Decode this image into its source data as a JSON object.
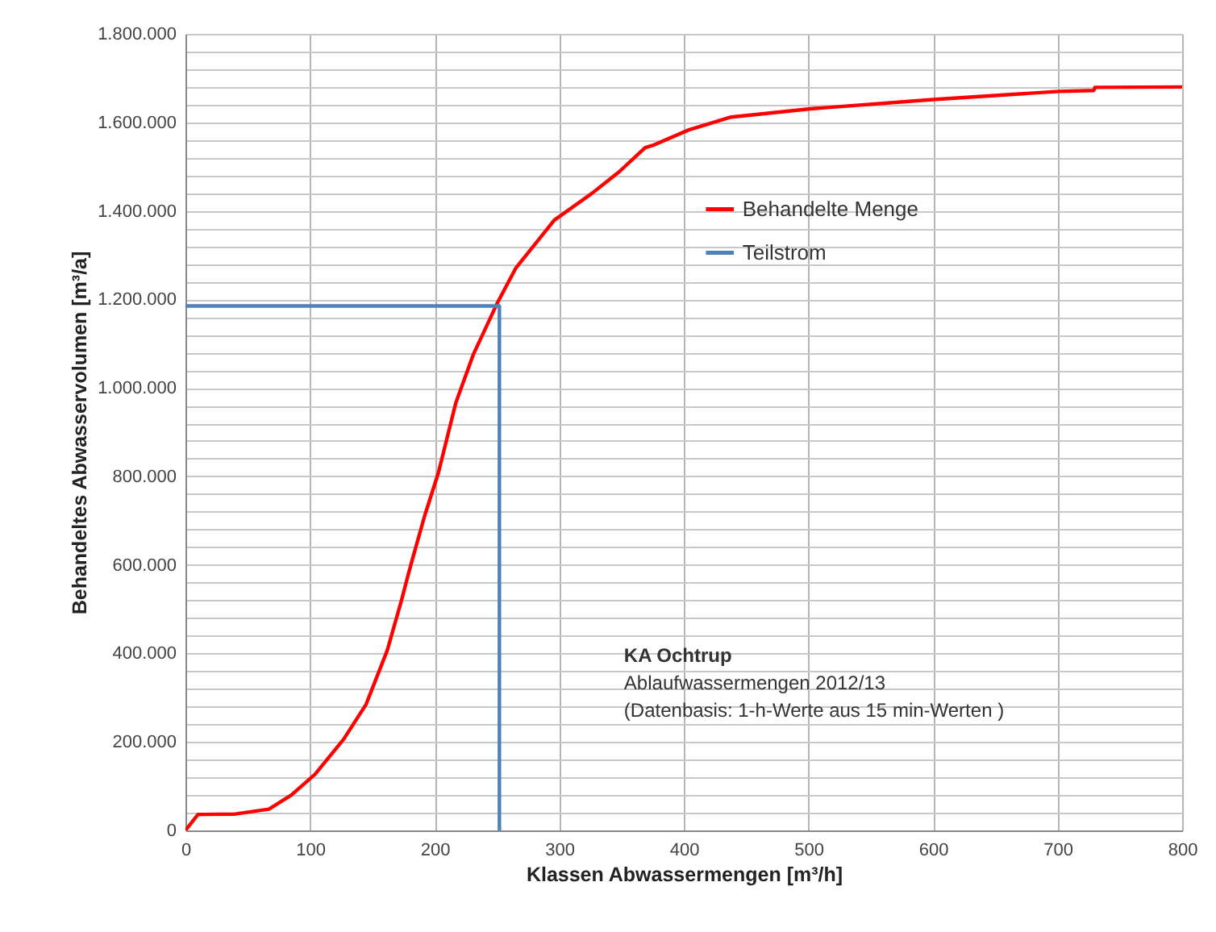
{
  "chart_data": {
    "type": "line",
    "xlabel": "Klassen Abwassermengen [m³/h]",
    "ylabel": "Behandeltes Abwasservolumen [m³/a]",
    "xlim": [
      0,
      800
    ],
    "xticks": [
      0,
      100,
      200,
      300,
      400,
      500,
      600,
      700,
      800
    ],
    "ylim": [
      0,
      1800000
    ],
    "yticks": [
      0,
      {
        "value": 40000,
        "label": null
      },
      {
        "value": 80000,
        "label": null
      },
      {
        "value": 120000,
        "label": null
      },
      {
        "value": 160000,
        "label": null
      },
      {
        "value": 200000,
        "label": "200.000"
      },
      {
        "value": 240000,
        "label": null
      },
      {
        "value": 280000,
        "label": null
      },
      {
        "value": 320000,
        "label": null
      },
      {
        "value": 360000,
        "label": null
      },
      {
        "value": 400000,
        "label": "400.000"
      },
      {
        "value": 440000,
        "label": null
      },
      {
        "value": 480000,
        "label": null
      },
      {
        "value": 520000,
        "label": null
      },
      {
        "value": 560000,
        "label": null
      },
      {
        "value": 600000,
        "label": "600.000"
      },
      {
        "value": 640000,
        "label": null
      },
      {
        "value": 680000,
        "label": null
      },
      {
        "value": 720000,
        "label": null
      },
      {
        "value": 760000,
        "label": null
      },
      {
        "value": 800000,
        "label": "800.000"
      },
      {
        "value": 840000,
        "label": null
      },
      {
        "value": 880000,
        "label": null
      },
      {
        "value": 920000,
        "label": null
      },
      {
        "value": 960000,
        "label": null
      },
      {
        "value": 1000000,
        "label": "1.000.000"
      },
      {
        "value": 1040000,
        "label": null
      },
      {
        "value": 1080000,
        "label": null
      },
      {
        "value": 1120000,
        "label": null
      },
      {
        "value": 1160000,
        "label": null
      },
      {
        "value": 1200000,
        "label": "1.200.000"
      },
      {
        "value": 1240000,
        "label": null
      },
      {
        "value": 1280000,
        "label": null
      },
      {
        "value": 1320000,
        "label": null
      },
      {
        "value": 1360000,
        "label": null
      },
      {
        "value": 1400000,
        "label": "1.400.000"
      },
      {
        "value": 1440000,
        "label": null
      },
      {
        "value": 1480000,
        "label": null
      },
      {
        "value": 1520000,
        "label": null
      },
      {
        "value": 1560000,
        "label": null
      },
      {
        "value": 1600000,
        "label": "1.600.000"
      },
      {
        "value": 1640000,
        "label": null
      },
      {
        "value": 1680000,
        "label": null
      },
      {
        "value": 1720000,
        "label": null
      },
      {
        "value": 1760000,
        "label": null
      },
      {
        "value": 1800000,
        "label": "1.800.000"
      }
    ],
    "grid": true,
    "legend": "right",
    "series": [
      {
        "name": "Behandelte Menge",
        "color": "#ff0000",
        "x": [
          0,
          10,
          40,
          67,
          85,
          104,
          127,
          145,
          162,
          173,
          181,
          192,
          203,
          217,
          231,
          250,
          265,
          296,
          326,
          348,
          369,
          376,
          404,
          438,
          503,
          602,
          701,
          729,
          730,
          800
        ],
        "values": [
          0,
          36000,
          37000,
          48000,
          80000,
          127000,
          206000,
          285000,
          407000,
          516000,
          601000,
          711000,
          808000,
          966000,
          1075000,
          1190000,
          1270000,
          1379000,
          1439000,
          1488000,
          1543000,
          1549000,
          1583000,
          1612000,
          1631000,
          1652000,
          1670000,
          1672000,
          1679000,
          1680000
        ]
      },
      {
        "name": "Teilstrom",
        "color": "#4f81bd",
        "x": [
          0,
          252,
          252
        ],
        "values": [
          1185000,
          1185000,
          0
        ]
      }
    ],
    "annotations": [
      "KA Ochtrup",
      "Ablaufwassermengen 2012/13",
      "(Datenbasis: 1-h-Werte aus 15 min-Werten )"
    ]
  }
}
